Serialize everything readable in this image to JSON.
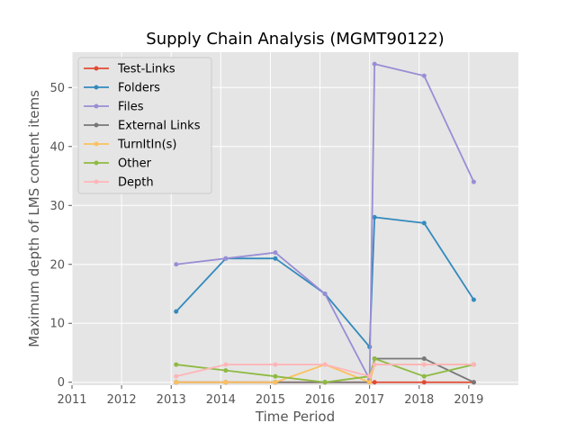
{
  "chart_data": {
    "type": "line",
    "title": "Supply Chain Analysis (MGMT90122)",
    "xlabel": "Time Period",
    "ylabel": "Maximum depth of LMS content items",
    "xlim": [
      2011,
      2020
    ],
    "ylim": [
      -0.5,
      56
    ],
    "x_ticks": [
      "2011",
      "2012",
      "2013",
      "2014",
      "2015",
      "2016",
      "2017",
      "2018",
      "2019"
    ],
    "y_ticks": [
      "0",
      "10",
      "20",
      "30",
      "40",
      "50"
    ],
    "grid": true,
    "legend_position": "upper-left",
    "x": [
      2013.1,
      2014.1,
      2015.1,
      2016.1,
      2017.0,
      2017.1,
      2018.1,
      2019.1
    ],
    "series": [
      {
        "name": "Test-Links",
        "color": "#e24a33",
        "values": [
          0,
          0,
          0,
          0,
          0,
          0,
          0,
          0
        ]
      },
      {
        "name": "Folders",
        "color": "#348abd",
        "values": [
          12,
          21,
          21,
          15,
          6,
          28,
          27,
          14
        ]
      },
      {
        "name": "Files",
        "color": "#988ed5",
        "values": [
          20,
          21,
          22,
          15,
          0.5,
          54,
          52,
          34
        ]
      },
      {
        "name": "External Links",
        "color": "#777777",
        "values": [
          0,
          0,
          0,
          0,
          0,
          4,
          4,
          0
        ]
      },
      {
        "name": "TurnItIn(s)",
        "color": "#fbc15e",
        "values": [
          0,
          0,
          0,
          3,
          0,
          3,
          3,
          3
        ]
      },
      {
        "name": "Other",
        "color": "#8eba42",
        "values": [
          3,
          2,
          1,
          0,
          1,
          4,
          1,
          3
        ]
      },
      {
        "name": "Depth",
        "color": "#ffb5b8",
        "values": [
          1,
          3,
          3,
          3,
          1,
          3,
          3,
          3
        ]
      }
    ]
  }
}
